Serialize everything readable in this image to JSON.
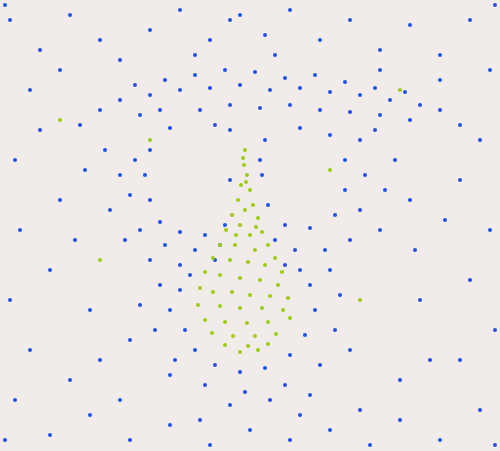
{
  "chart_data": {
    "type": "scatter",
    "tick_labels": false,
    "grid": false,
    "xlim": [
      0,
      500
    ],
    "ylim": [
      451,
      0
    ],
    "series": [
      {
        "color": "#1f52e6",
        "marker": "circle",
        "x": [
          120,
          135,
          150,
          165,
          180,
          195,
          210,
          225,
          240,
          255,
          270,
          285,
          300,
          315,
          330,
          345,
          360,
          375,
          390,
          405,
          420,
          140,
          160,
          200,
          230,
          260,
          290,
          320,
          350,
          380,
          410,
          440,
          100,
          80,
          460,
          150,
          145,
          150,
          160,
          180,
          205,
          225,
          230,
          215,
          170,
          135,
          130,
          140,
          165,
          195,
          220,
          120,
          110,
          125,
          150,
          180,
          105,
          265,
          262,
          268,
          285,
          310,
          335,
          345,
          345,
          330,
          300,
          360,
          365,
          360,
          350,
          325,
          295,
          375,
          385,
          380,
          395,
          410,
          230,
          260,
          275,
          215,
          285,
          180,
          170,
          185,
          195,
          215,
          240,
          265,
          290,
          305,
          315,
          310,
          300,
          190,
          160,
          155,
          175,
          205,
          245,
          285,
          320,
          335,
          340,
          330,
          170,
          230,
          270,
          310,
          350,
          140,
          130,
          10,
          40,
          70,
          100,
          30,
          60,
          150,
          180,
          210,
          240,
          265,
          290,
          320,
          350,
          380,
          410,
          440,
          470,
          490,
          480,
          460,
          490,
          470,
          495,
          460,
          480,
          440,
          400,
          370,
          330,
          290,
          250,
          210,
          170,
          130,
          90,
          50,
          15,
          30,
          70,
          10,
          50,
          20,
          60,
          15,
          40,
          85,
          75,
          90,
          100,
          420,
          430,
          400,
          415,
          445,
          120,
          360,
          200,
          300,
          230,
          275,
          195,
          120,
          380,
          440,
          5,
          495,
          495,
          5
        ],
        "y": [
          100,
          85,
          95,
          80,
          90,
          75,
          88,
          70,
          85,
          72,
          90,
          78,
          88,
          75,
          92,
          82,
          95,
          88,
          100,
          92,
          105,
          115,
          110,
          110,
          105,
          108,
          105,
          110,
          112,
          115,
          120,
          110,
          110,
          125,
          125,
          150,
          175,
          200,
          222,
          232,
          235,
          225,
          130,
          125,
          128,
          160,
          195,
          230,
          245,
          250,
          245,
          175,
          210,
          240,
          260,
          265,
          150,
          140,
          175,
          205,
          225,
          228,
          215,
          190,
          160,
          135,
          128,
          140,
          175,
          210,
          240,
          250,
          250,
          130,
          190,
          230,
          160,
          200,
          180,
          160,
          240,
          260,
          265,
          290,
          310,
          330,
          350,
          365,
          372,
          368,
          355,
          335,
          310,
          285,
          270,
          275,
          285,
          330,
          360,
          385,
          392,
          385,
          365,
          330,
          295,
          270,
          375,
          405,
          400,
          395,
          350,
          305,
          340,
          20,
          50,
          15,
          40,
          90,
          70,
          30,
          10,
          40,
          15,
          35,
          10,
          40,
          20,
          50,
          25,
          55,
          20,
          70,
          140,
          180,
          230,
          280,
          330,
          360,
          410,
          440,
          420,
          445,
          430,
          440,
          430,
          445,
          425,
          440,
          415,
          435,
          400,
          350,
          380,
          300,
          270,
          230,
          200,
          160,
          130,
          170,
          240,
          310,
          360,
          300,
          360,
          380,
          250,
          220,
          400,
          410,
          420,
          415,
          20,
          55,
          55,
          60,
          70,
          80,
          440,
          5,
          445,
          5
        ]
      },
      {
        "color": "#9dcc12",
        "marker": "circle",
        "x": [
          245,
          243,
          244,
          247,
          246,
          241,
          250,
          238,
          253,
          245,
          232,
          258,
          240,
          256,
          226,
          262,
          250,
          236,
          220,
          268,
          235,
          255,
          213,
          275,
          230,
          248,
          265,
          205,
          282,
          220,
          240,
          260,
          278,
          200,
          213,
          232,
          250,
          270,
          288,
          198,
          220,
          240,
          262,
          283,
          205,
          225,
          247,
          268,
          290,
          212,
          233,
          255,
          276,
          225,
          248,
          268,
          240,
          258,
          150,
          330,
          100,
          400,
          360,
          60
        ],
        "y": [
          150,
          158,
          165,
          175,
          182,
          185,
          190,
          200,
          205,
          210,
          215,
          218,
          225,
          227,
          230,
          232,
          235,
          235,
          245,
          245,
          245,
          250,
          258,
          258,
          260,
          262,
          265,
          272,
          272,
          275,
          278,
          280,
          285,
          288,
          292,
          292,
          295,
          296,
          298,
          305,
          306,
          308,
          308,
          310,
          320,
          322,
          323,
          322,
          318,
          333,
          336,
          336,
          334,
          345,
          346,
          344,
          352,
          350,
          140,
          170,
          260,
          90,
          300,
          120
        ]
      }
    ]
  }
}
